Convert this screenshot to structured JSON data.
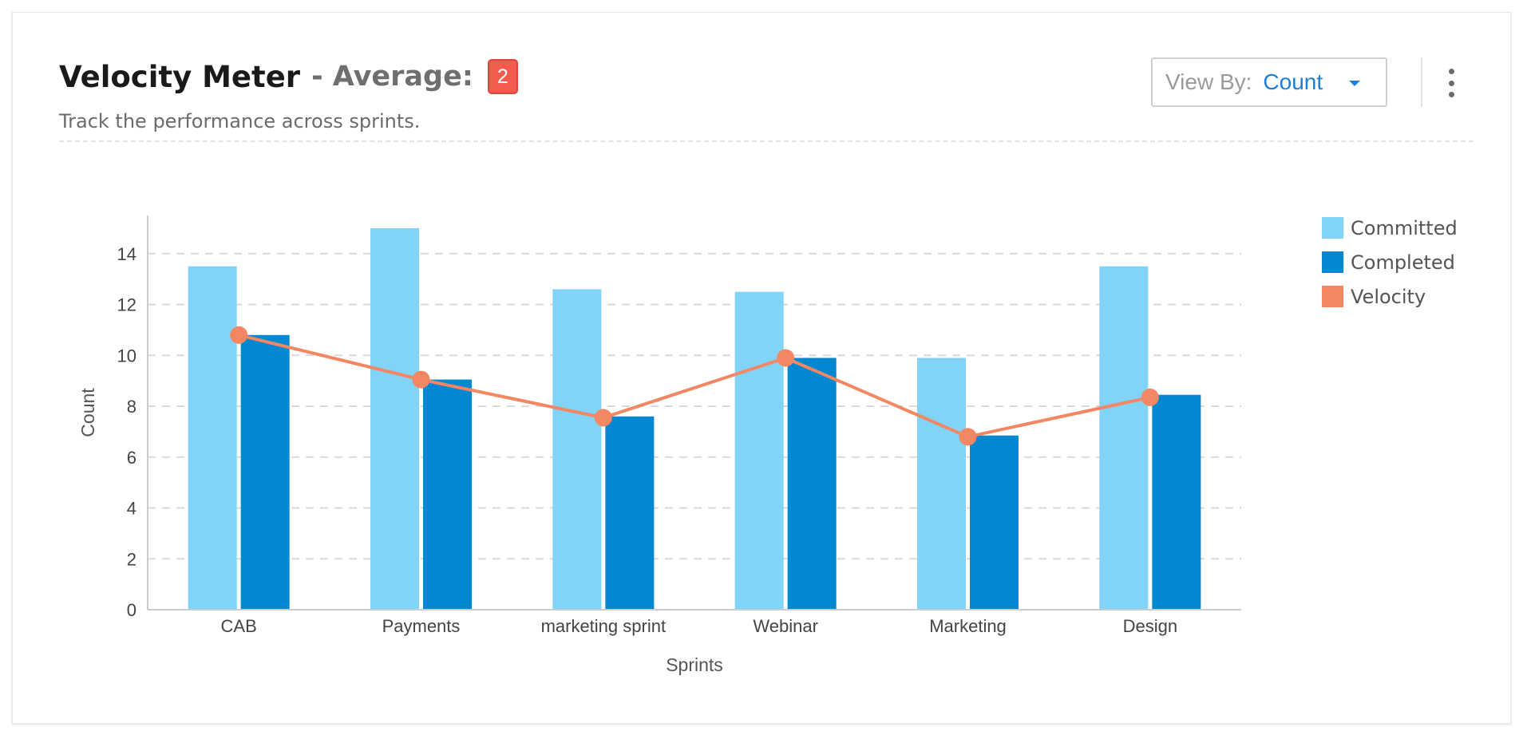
{
  "header": {
    "title": "Velocity Meter",
    "average_label": "- Average:",
    "average_value": "2",
    "subtitle": "Track the performance across sprints."
  },
  "controls": {
    "view_by_label": "View By:",
    "view_by_value": "Count"
  },
  "colors": {
    "committed": "#81d3f8",
    "completed": "#0288d1",
    "velocity": "#f38764",
    "badge": "#f25c4e",
    "accent": "#1e7fd6"
  },
  "chart_data": {
    "type": "bar",
    "categories": [
      "CAB",
      "Payments",
      "marketing sprint",
      "Webinar",
      "Marketing",
      "Design"
    ],
    "series": [
      {
        "name": "Committed",
        "type": "bar",
        "values": [
          13.5,
          15,
          12.6,
          12.5,
          9.9,
          13.5
        ]
      },
      {
        "name": "Completed",
        "type": "bar",
        "values": [
          10.8,
          9.05,
          7.6,
          9.9,
          6.85,
          8.45
        ]
      },
      {
        "name": "Velocity",
        "type": "line",
        "values": [
          10.8,
          9.05,
          7.55,
          9.9,
          6.8,
          8.35
        ]
      }
    ],
    "xlabel": "Sprints",
    "ylabel": "Count",
    "ylim": [
      0,
      15.5
    ],
    "yticks": [
      0,
      2,
      4,
      6,
      8,
      10,
      12,
      14
    ],
    "grid": true,
    "legend": "right"
  }
}
